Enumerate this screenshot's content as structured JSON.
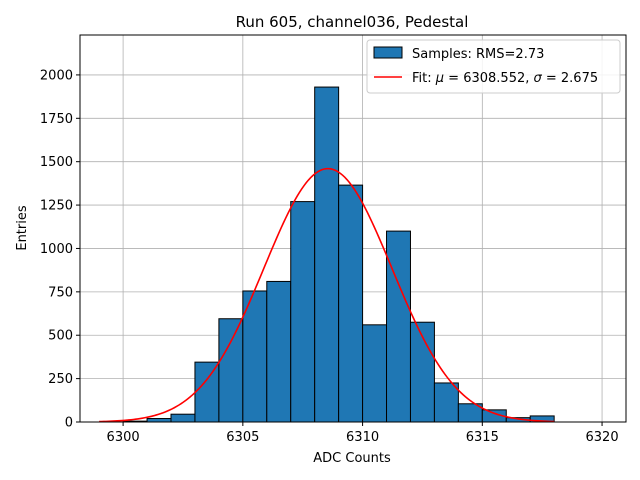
{
  "chart_data": {
    "type": "bar",
    "title": "Run 605, channel036, Pedestal",
    "xlabel": "ADC Counts",
    "ylabel": "Entries",
    "xlim": [
      6298.2,
      6321.0
    ],
    "ylim": [
      0,
      2230
    ],
    "x_ticks": [
      6300,
      6305,
      6310,
      6315,
      6320
    ],
    "y_ticks": [
      0,
      250,
      500,
      750,
      1000,
      1250,
      1500,
      1750,
      2000
    ],
    "grid": true,
    "legend_position": "top-right",
    "bin_edges": [
      6300,
      6301,
      6302,
      6303,
      6304,
      6305,
      6306,
      6307,
      6308,
      6309,
      6310,
      6311,
      6312,
      6313,
      6314,
      6315,
      6316,
      6317,
      6318
    ],
    "series": [
      {
        "name": "Samples: RMS=2.73",
        "kind": "histogram",
        "color": "#1f77b4",
        "edgecolor": "#000000",
        "values": [
          5,
          20,
          45,
          345,
          595,
          755,
          810,
          1270,
          1930,
          1365,
          560,
          1100,
          575,
          225,
          105,
          70,
          25,
          35
        ]
      },
      {
        "name": "Fit: μ = 6308.552, σ = 2.675",
        "name_math": {
          "prefix": "Fit: ",
          "mu_symbol": "μ",
          "mu_value": " = 6308.552, ",
          "sigma_symbol": "σ",
          "sigma_value": " = 2.675"
        },
        "kind": "line",
        "color": "#ff0000",
        "gauss": {
          "amplitude": 1460,
          "mean": 6308.552,
          "sigma": 2.675,
          "x_range": [
            6299,
            6318
          ]
        }
      }
    ]
  }
}
